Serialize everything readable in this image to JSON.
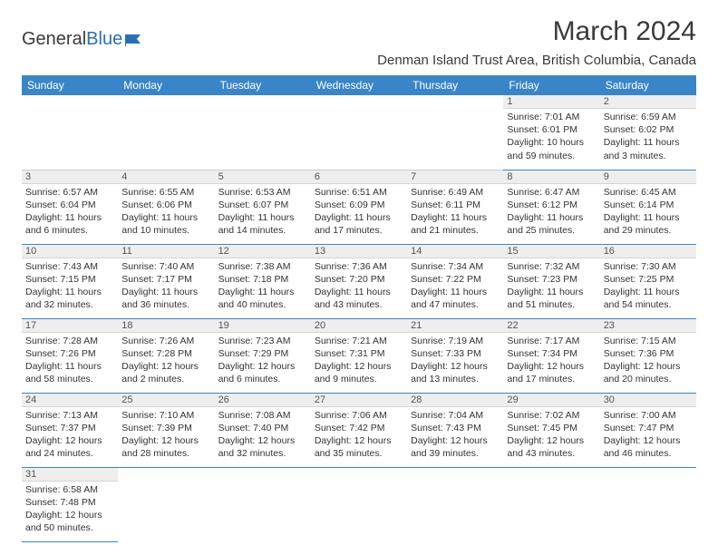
{
  "logo": {
    "text1": "General",
    "text2": "Blue"
  },
  "title": "March 2024",
  "location": "Denman Island Trust Area, British Columbia, Canada",
  "header_bg": "#3a85c7",
  "days": [
    "Sunday",
    "Monday",
    "Tuesday",
    "Wednesday",
    "Thursday",
    "Friday",
    "Saturday"
  ],
  "weeks": [
    [
      null,
      null,
      null,
      null,
      null,
      {
        "n": "1",
        "sr": "Sunrise: 7:01 AM",
        "ss": "Sunset: 6:01 PM",
        "dl1": "Daylight: 10 hours",
        "dl2": "and 59 minutes."
      },
      {
        "n": "2",
        "sr": "Sunrise: 6:59 AM",
        "ss": "Sunset: 6:02 PM",
        "dl1": "Daylight: 11 hours",
        "dl2": "and 3 minutes."
      }
    ],
    [
      {
        "n": "3",
        "sr": "Sunrise: 6:57 AM",
        "ss": "Sunset: 6:04 PM",
        "dl1": "Daylight: 11 hours",
        "dl2": "and 6 minutes."
      },
      {
        "n": "4",
        "sr": "Sunrise: 6:55 AM",
        "ss": "Sunset: 6:06 PM",
        "dl1": "Daylight: 11 hours",
        "dl2": "and 10 minutes."
      },
      {
        "n": "5",
        "sr": "Sunrise: 6:53 AM",
        "ss": "Sunset: 6:07 PM",
        "dl1": "Daylight: 11 hours",
        "dl2": "and 14 minutes."
      },
      {
        "n": "6",
        "sr": "Sunrise: 6:51 AM",
        "ss": "Sunset: 6:09 PM",
        "dl1": "Daylight: 11 hours",
        "dl2": "and 17 minutes."
      },
      {
        "n": "7",
        "sr": "Sunrise: 6:49 AM",
        "ss": "Sunset: 6:11 PM",
        "dl1": "Daylight: 11 hours",
        "dl2": "and 21 minutes."
      },
      {
        "n": "8",
        "sr": "Sunrise: 6:47 AM",
        "ss": "Sunset: 6:12 PM",
        "dl1": "Daylight: 11 hours",
        "dl2": "and 25 minutes."
      },
      {
        "n": "9",
        "sr": "Sunrise: 6:45 AM",
        "ss": "Sunset: 6:14 PM",
        "dl1": "Daylight: 11 hours",
        "dl2": "and 29 minutes."
      }
    ],
    [
      {
        "n": "10",
        "sr": "Sunrise: 7:43 AM",
        "ss": "Sunset: 7:15 PM",
        "dl1": "Daylight: 11 hours",
        "dl2": "and 32 minutes."
      },
      {
        "n": "11",
        "sr": "Sunrise: 7:40 AM",
        "ss": "Sunset: 7:17 PM",
        "dl1": "Daylight: 11 hours",
        "dl2": "and 36 minutes."
      },
      {
        "n": "12",
        "sr": "Sunrise: 7:38 AM",
        "ss": "Sunset: 7:18 PM",
        "dl1": "Daylight: 11 hours",
        "dl2": "and 40 minutes."
      },
      {
        "n": "13",
        "sr": "Sunrise: 7:36 AM",
        "ss": "Sunset: 7:20 PM",
        "dl1": "Daylight: 11 hours",
        "dl2": "and 43 minutes."
      },
      {
        "n": "14",
        "sr": "Sunrise: 7:34 AM",
        "ss": "Sunset: 7:22 PM",
        "dl1": "Daylight: 11 hours",
        "dl2": "and 47 minutes."
      },
      {
        "n": "15",
        "sr": "Sunrise: 7:32 AM",
        "ss": "Sunset: 7:23 PM",
        "dl1": "Daylight: 11 hours",
        "dl2": "and 51 minutes."
      },
      {
        "n": "16",
        "sr": "Sunrise: 7:30 AM",
        "ss": "Sunset: 7:25 PM",
        "dl1": "Daylight: 11 hours",
        "dl2": "and 54 minutes."
      }
    ],
    [
      {
        "n": "17",
        "sr": "Sunrise: 7:28 AM",
        "ss": "Sunset: 7:26 PM",
        "dl1": "Daylight: 11 hours",
        "dl2": "and 58 minutes."
      },
      {
        "n": "18",
        "sr": "Sunrise: 7:26 AM",
        "ss": "Sunset: 7:28 PM",
        "dl1": "Daylight: 12 hours",
        "dl2": "and 2 minutes."
      },
      {
        "n": "19",
        "sr": "Sunrise: 7:23 AM",
        "ss": "Sunset: 7:29 PM",
        "dl1": "Daylight: 12 hours",
        "dl2": "and 6 minutes."
      },
      {
        "n": "20",
        "sr": "Sunrise: 7:21 AM",
        "ss": "Sunset: 7:31 PM",
        "dl1": "Daylight: 12 hours",
        "dl2": "and 9 minutes."
      },
      {
        "n": "21",
        "sr": "Sunrise: 7:19 AM",
        "ss": "Sunset: 7:33 PM",
        "dl1": "Daylight: 12 hours",
        "dl2": "and 13 minutes."
      },
      {
        "n": "22",
        "sr": "Sunrise: 7:17 AM",
        "ss": "Sunset: 7:34 PM",
        "dl1": "Daylight: 12 hours",
        "dl2": "and 17 minutes."
      },
      {
        "n": "23",
        "sr": "Sunrise: 7:15 AM",
        "ss": "Sunset: 7:36 PM",
        "dl1": "Daylight: 12 hours",
        "dl2": "and 20 minutes."
      }
    ],
    [
      {
        "n": "24",
        "sr": "Sunrise: 7:13 AM",
        "ss": "Sunset: 7:37 PM",
        "dl1": "Daylight: 12 hours",
        "dl2": "and 24 minutes."
      },
      {
        "n": "25",
        "sr": "Sunrise: 7:10 AM",
        "ss": "Sunset: 7:39 PM",
        "dl1": "Daylight: 12 hours",
        "dl2": "and 28 minutes."
      },
      {
        "n": "26",
        "sr": "Sunrise: 7:08 AM",
        "ss": "Sunset: 7:40 PM",
        "dl1": "Daylight: 12 hours",
        "dl2": "and 32 minutes."
      },
      {
        "n": "27",
        "sr": "Sunrise: 7:06 AM",
        "ss": "Sunset: 7:42 PM",
        "dl1": "Daylight: 12 hours",
        "dl2": "and 35 minutes."
      },
      {
        "n": "28",
        "sr": "Sunrise: 7:04 AM",
        "ss": "Sunset: 7:43 PM",
        "dl1": "Daylight: 12 hours",
        "dl2": "and 39 minutes."
      },
      {
        "n": "29",
        "sr": "Sunrise: 7:02 AM",
        "ss": "Sunset: 7:45 PM",
        "dl1": "Daylight: 12 hours",
        "dl2": "and 43 minutes."
      },
      {
        "n": "30",
        "sr": "Sunrise: 7:00 AM",
        "ss": "Sunset: 7:47 PM",
        "dl1": "Daylight: 12 hours",
        "dl2": "and 46 minutes."
      }
    ],
    [
      {
        "n": "31",
        "sr": "Sunrise: 6:58 AM",
        "ss": "Sunset: 7:48 PM",
        "dl1": "Daylight: 12 hours",
        "dl2": "and 50 minutes."
      },
      null,
      null,
      null,
      null,
      null,
      null
    ]
  ]
}
